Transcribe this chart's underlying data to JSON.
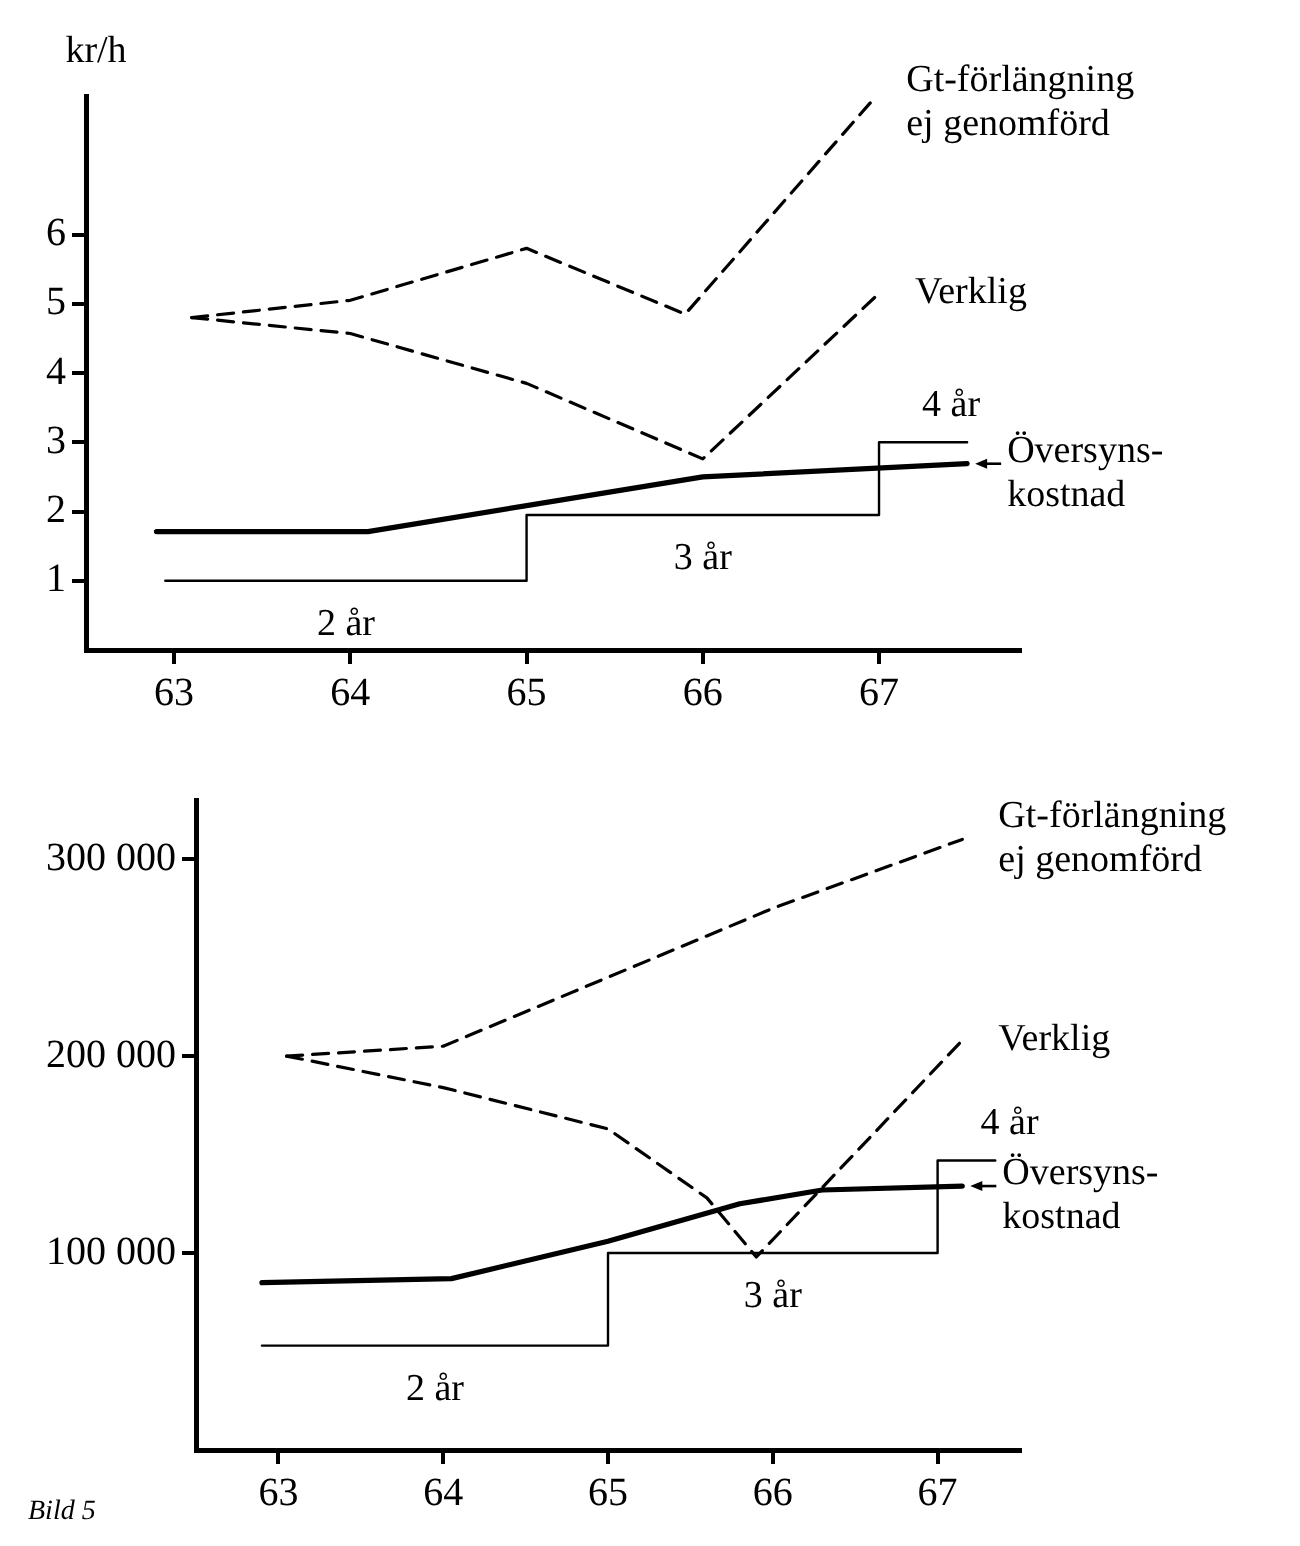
{
  "chart_data": [
    {
      "type": "line",
      "ylabel": "kr/h",
      "xlim": [
        62.5,
        67.8
      ],
      "xticks": [
        63,
        64,
        65,
        66,
        67
      ],
      "ylim": [
        0,
        8
      ],
      "yticks": [
        1,
        2,
        3,
        4,
        5,
        6
      ],
      "grid": false,
      "legend": "right",
      "marker": "none",
      "series": [
        {
          "name": "Gt-förlängning ej genomförd",
          "color": "#000000",
          "line_style": "dashed",
          "x": [
            63.1,
            64,
            65,
            65.9,
            66.95
          ],
          "values": [
            4.8,
            5.05,
            5.8,
            4.85,
            7.9
          ]
        },
        {
          "name": "Verklig",
          "color": "#000000",
          "line_style": "dashed",
          "x": [
            63.1,
            64,
            65,
            66,
            67
          ],
          "values": [
            4.8,
            4.57,
            3.85,
            2.76,
            5.15
          ]
        },
        {
          "name": "Översyns-kostnad",
          "color": "#000000",
          "line_style": "solid",
          "x": [
            62.9,
            64.1,
            66,
            67.5
          ],
          "values": [
            1.71,
            1.71,
            2.5,
            2.69
          ]
        },
        {
          "type": "step",
          "color": "#000000",
          "line_style": "solid",
          "x": [
            62.95,
            65,
            67,
            67.5
          ],
          "values": [
            1.0,
            1.95,
            3.0,
            3.0
          ]
        }
      ],
      "annotations": [
        "2 år",
        "3 år",
        "4 år"
      ]
    },
    {
      "type": "line",
      "xlim": [
        62.5,
        67.5
      ],
      "xticks": [
        63,
        64,
        65,
        66,
        67
      ],
      "ylim": [
        0,
        330000
      ],
      "yticks": [
        {
          "value": 100000,
          "label": "100 000"
        },
        {
          "value": 200000,
          "label": "200 000"
        },
        {
          "value": 300000,
          "label": "300 000"
        }
      ],
      "grid": false,
      "legend": "right",
      "marker": "none",
      "series": [
        {
          "name": "Gt-förlängning ej genomförd",
          "color": "#000000",
          "line_style": "dashed",
          "x": [
            63.05,
            64,
            65,
            66,
            67.15
          ],
          "values": [
            200000,
            205000,
            240000,
            275000,
            310000
          ]
        },
        {
          "name": "Verklig",
          "color": "#000000",
          "line_style": "dashed",
          "x": [
            63.05,
            64,
            65,
            65.6,
            65.9,
            67.15
          ],
          "values": [
            200000,
            184000,
            163000,
            128000,
            98000,
            208000
          ]
        },
        {
          "name": "Översyns-kostnad",
          "color": "#000000",
          "line_style": "solid",
          "x": [
            62.9,
            64.05,
            65,
            65.8,
            66.3,
            67.15
          ],
          "values": [
            85000,
            87000,
            106000,
            125000,
            132000,
            134000
          ]
        },
        {
          "type": "step",
          "color": "#000000",
          "line_style": "solid",
          "x": [
            62.9,
            65,
            67,
            67.35
          ],
          "values": [
            53000,
            100000,
            147000,
            147000
          ]
        }
      ],
      "annotations": [
        "2 år",
        "3 år",
        "4 år",
        "Bild 5"
      ]
    }
  ]
}
